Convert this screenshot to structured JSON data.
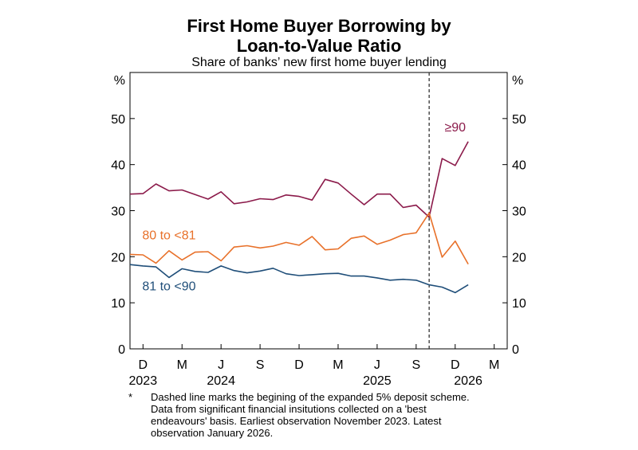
{
  "chart_data": {
    "type": "line",
    "title_lines": [
      "First Home Buyer Borrowing by",
      "Loan-to-Value Ratio"
    ],
    "subtitle": "Share of banks’ new first home buyer lending",
    "ylabel_left": "%",
    "ylabel_right": "%",
    "ylim": [
      0,
      60
    ],
    "yticks": [
      0,
      10,
      20,
      30,
      40,
      50
    ],
    "x_start": "2023-11",
    "x_end": "2026-04",
    "x_month_ticks": [
      {
        "label": "D",
        "date": "2023-12"
      },
      {
        "label": "M",
        "date": "2024-03"
      },
      {
        "label": "J",
        "date": "2024-06"
      },
      {
        "label": "S",
        "date": "2024-09"
      },
      {
        "label": "D",
        "date": "2024-12"
      },
      {
        "label": "M",
        "date": "2025-03"
      },
      {
        "label": "J",
        "date": "2025-06"
      },
      {
        "label": "S",
        "date": "2025-09"
      },
      {
        "label": "D",
        "date": "2025-12"
      },
      {
        "label": "M",
        "date": "2026-03"
      }
    ],
    "x_year_ticks": [
      {
        "label": "2023",
        "date": "2023-12"
      },
      {
        "label": "2024",
        "date": "2024-06"
      },
      {
        "label": "2025",
        "date": "2025-06"
      },
      {
        "label": "2026",
        "date": "2026-01"
      }
    ],
    "vline_date": "2025-10",
    "vline_style": "dashed",
    "grid": false,
    "x": [
      "2023-11",
      "2023-12",
      "2024-01",
      "2024-02",
      "2024-03",
      "2024-04",
      "2024-05",
      "2024-06",
      "2024-07",
      "2024-08",
      "2024-09",
      "2024-10",
      "2024-11",
      "2024-12",
      "2025-01",
      "2025-02",
      "2025-03",
      "2025-04",
      "2025-05",
      "2025-06",
      "2025-07",
      "2025-08",
      "2025-09",
      "2025-10",
      "2025-11",
      "2025-12",
      "2026-01"
    ],
    "series": [
      {
        "name": "≥90",
        "color": "#8b1a4a",
        "values": [
          33.6,
          33.7,
          35.8,
          34.3,
          34.5,
          33.5,
          32.5,
          34.1,
          31.5,
          31.9,
          32.6,
          32.4,
          33.4,
          33.1,
          32.3,
          36.8,
          36.0,
          33.6,
          31.3,
          33.6,
          33.6,
          30.7,
          31.2,
          28.6,
          41.3,
          39.8,
          45.0
        ],
        "label_x": "2025-12",
        "label_y": 47.2
      },
      {
        "name": "80 to <81",
        "color": "#e8712a",
        "values": [
          20.5,
          20.4,
          18.6,
          21.3,
          19.3,
          21.0,
          21.1,
          19.1,
          22.1,
          22.4,
          21.9,
          22.3,
          23.1,
          22.5,
          24.4,
          21.5,
          21.7,
          24.0,
          24.5,
          22.7,
          23.6,
          24.8,
          25.2,
          29.5,
          19.9,
          23.4,
          18.4
        ],
        "label_x": "2024-02",
        "label_y": 23.8
      },
      {
        "name": "81 to <90",
        "color": "#1f4e79",
        "values": [
          18.3,
          18.0,
          17.8,
          15.5,
          17.4,
          16.8,
          16.6,
          18.0,
          17.0,
          16.5,
          16.9,
          17.5,
          16.3,
          15.9,
          16.1,
          16.3,
          16.4,
          15.8,
          15.8,
          15.4,
          14.9,
          15.1,
          14.9,
          13.9,
          13.4,
          12.2,
          13.9
        ],
        "label_x": "2024-02",
        "label_y": 12.7
      }
    ]
  },
  "footnote": {
    "marker": "*",
    "lines": [
      "Dashed line marks the begining of the expanded 5% deposit scheme.",
      "Data from significant financial insitutions collected on a 'best",
      "endeavours' basis. Earliest observation November 2023. Latest",
      "observation January 2026."
    ]
  }
}
